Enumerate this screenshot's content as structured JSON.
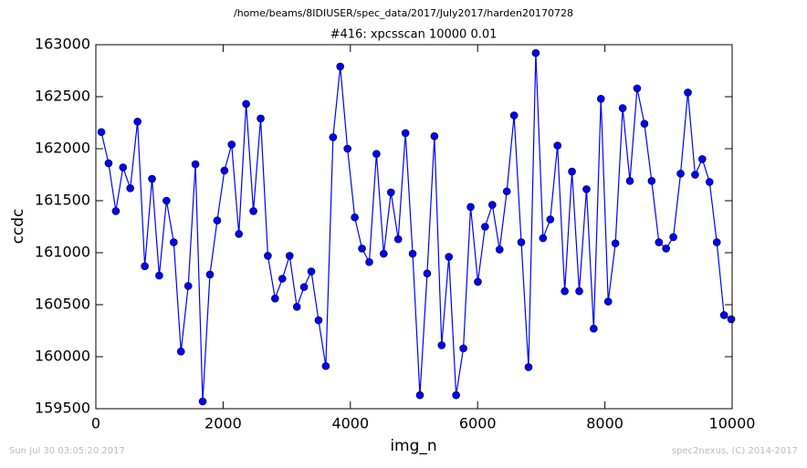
{
  "chart_data": {
    "type": "line",
    "suptitle": "/home/beams/8IDIUSER/spec_data/2017/July2017/harden20170728",
    "title": "#416: xpcsscan 10000 0.01",
    "x_label": "img_n",
    "y_label": "ccdc",
    "footer_left": "Sun Jul 30 03:05:20 2017",
    "footer_right": "spec2nexus, (C) 2014-2017",
    "xlim": [
      0,
      10000
    ],
    "xticks": [
      0,
      2000,
      4000,
      6000,
      8000,
      10000
    ],
    "ylim": [
      159500,
      163000
    ],
    "yticks": [
      159500,
      160000,
      160500,
      161000,
      161500,
      162000,
      162500,
      163000
    ],
    "x": [
      86,
      200,
      314,
      427,
      541,
      655,
      769,
      883,
      996,
      1110,
      1224,
      1338,
      1452,
      1565,
      1679,
      1793,
      1907,
      2021,
      2134,
      2248,
      2362,
      2476,
      2590,
      2703,
      2817,
      2931,
      3045,
      3159,
      3272,
      3386,
      3500,
      3614,
      3728,
      3841,
      3955,
      4069,
      4183,
      4297,
      4410,
      4524,
      4638,
      4752,
      4866,
      4979,
      5093,
      5207,
      5321,
      5435,
      5548,
      5662,
      5776,
      5890,
      6004,
      6117,
      6231,
      6345,
      6459,
      6573,
      6686,
      6800,
      6914,
      7028,
      7142,
      7255,
      7369,
      7483,
      7597,
      7711,
      7824,
      7938,
      8052,
      8166,
      8280,
      8393,
      8507,
      8621,
      8735,
      8849,
      8962,
      9076,
      9190,
      9304,
      9418,
      9531,
      9645,
      9759,
      9873,
      9986
    ],
    "series": [
      {
        "name": "ccdc",
        "color": "#0000ff",
        "values": [
          162160,
          161860,
          161400,
          161820,
          161620,
          162260,
          160870,
          161710,
          160780,
          161500,
          161100,
          160050,
          160680,
          161850,
          159570,
          160790,
          161310,
          161790,
          162040,
          161180,
          162430,
          161400,
          162290,
          160970,
          160560,
          160750,
          160970,
          160480,
          160670,
          160820,
          160350,
          159910,
          162110,
          162790,
          162000,
          161340,
          161040,
          160910,
          161950,
          160990,
          161580,
          161130,
          162150,
          160990,
          159630,
          160800,
          162120,
          160110,
          160960,
          159630,
          160080,
          161440,
          160720,
          161250,
          161460,
          161030,
          161590,
          162320,
          161100,
          159900,
          162920,
          161140,
          161320,
          162030,
          160630,
          161780,
          160630,
          161610,
          160270,
          162480,
          160530,
          161090,
          162390,
          161690,
          162580,
          162240,
          161690,
          161100,
          161040,
          161150,
          161760,
          162540,
          161750,
          161900,
          161680,
          161100,
          160400,
          160360
        ]
      }
    ]
  }
}
